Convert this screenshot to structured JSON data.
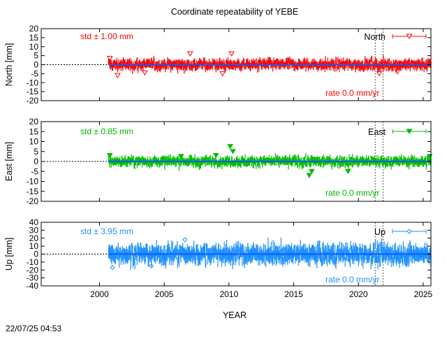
{
  "title": "Coordinate repeatability of YEBE",
  "xlabel": "YEAR",
  "timestamp": "22/07/25 04:53",
  "colors": {
    "north": "#ff0000",
    "east": "#00bb00",
    "up": "#1e90ff",
    "fit": "#0a5eff"
  },
  "chart_data": [
    {
      "type": "scatter",
      "ylabel": "North [mm]",
      "legend": "North",
      "legend_position": "top-right",
      "std_label": "std ± 1.00 mm",
      "rate_label": "rate  0.0 mm/yr",
      "xlim": [
        1995.5,
        2025.6
      ],
      "ylim": [
        -20,
        20
      ],
      "yticks": [
        20,
        15,
        10,
        5,
        0,
        -5,
        -10,
        -15,
        -20
      ],
      "xticks": [
        2000,
        2005,
        2010,
        2015,
        2020,
        2025
      ],
      "data_start": 2000.7,
      "data_end": 2025.6,
      "std": 1.0,
      "rate": 0.0,
      "discontinuities": [
        2021.3,
        2021.9
      ],
      "outliers": [
        [
          2000.8,
          3.5
        ],
        [
          2001.4,
          -6.0
        ],
        [
          2003.5,
          -4.5
        ],
        [
          2007.0,
          6.0
        ],
        [
          2009.5,
          -5.0
        ],
        [
          2010.2,
          6.0
        ],
        [
          2021.6,
          -5.0
        ],
        [
          2023.0,
          -4.0
        ]
      ]
    },
    {
      "type": "scatter",
      "ylabel": "East [mm]",
      "legend": "East",
      "legend_position": "top-right",
      "std_label": "std ± 0.85 mm",
      "rate_label": "rate  0.0 mm/yr",
      "xlim": [
        1995.5,
        2025.6
      ],
      "ylim": [
        -20,
        20
      ],
      "yticks": [
        20,
        15,
        10,
        5,
        0,
        -5,
        -10,
        -15,
        -20
      ],
      "xticks": [
        2000,
        2005,
        2010,
        2015,
        2020,
        2025
      ],
      "data_start": 2000.7,
      "data_end": 2025.6,
      "std": 0.85,
      "rate": 0.0,
      "discontinuities": [
        2021.3,
        2021.9
      ],
      "outliers": [
        [
          2000.8,
          3.0
        ],
        [
          2006.3,
          2.5
        ],
        [
          2009.0,
          3.0
        ],
        [
          2010.1,
          7.5
        ],
        [
          2010.3,
          5.0
        ],
        [
          2016.2,
          -7.0
        ],
        [
          2016.4,
          -5.0
        ],
        [
          2019.2,
          -5.0
        ],
        [
          2025.5,
          2.5
        ]
      ]
    },
    {
      "type": "scatter",
      "ylabel": "Up [mm]",
      "legend": "Up",
      "legend_position": "top-right",
      "std_label": "std ± 3.95 mm",
      "rate_label": "rate  0.0 mm/yr",
      "xlim": [
        1995.5,
        2025.6
      ],
      "ylim": [
        -40,
        40
      ],
      "yticks": [
        40,
        30,
        20,
        10,
        0,
        -10,
        -20,
        -30,
        -40
      ],
      "xticks": [
        2000,
        2005,
        2010,
        2015,
        2020,
        2025
      ],
      "data_start": 2000.7,
      "data_end": 2025.6,
      "std": 3.95,
      "rate": 0.0,
      "discontinuities": [
        2021.3,
        2021.9
      ],
      "outliers": [
        [
          2006.6,
          18.0
        ],
        [
          2004.0,
          -15.0
        ],
        [
          2001.0,
          -17.0
        ]
      ]
    }
  ]
}
